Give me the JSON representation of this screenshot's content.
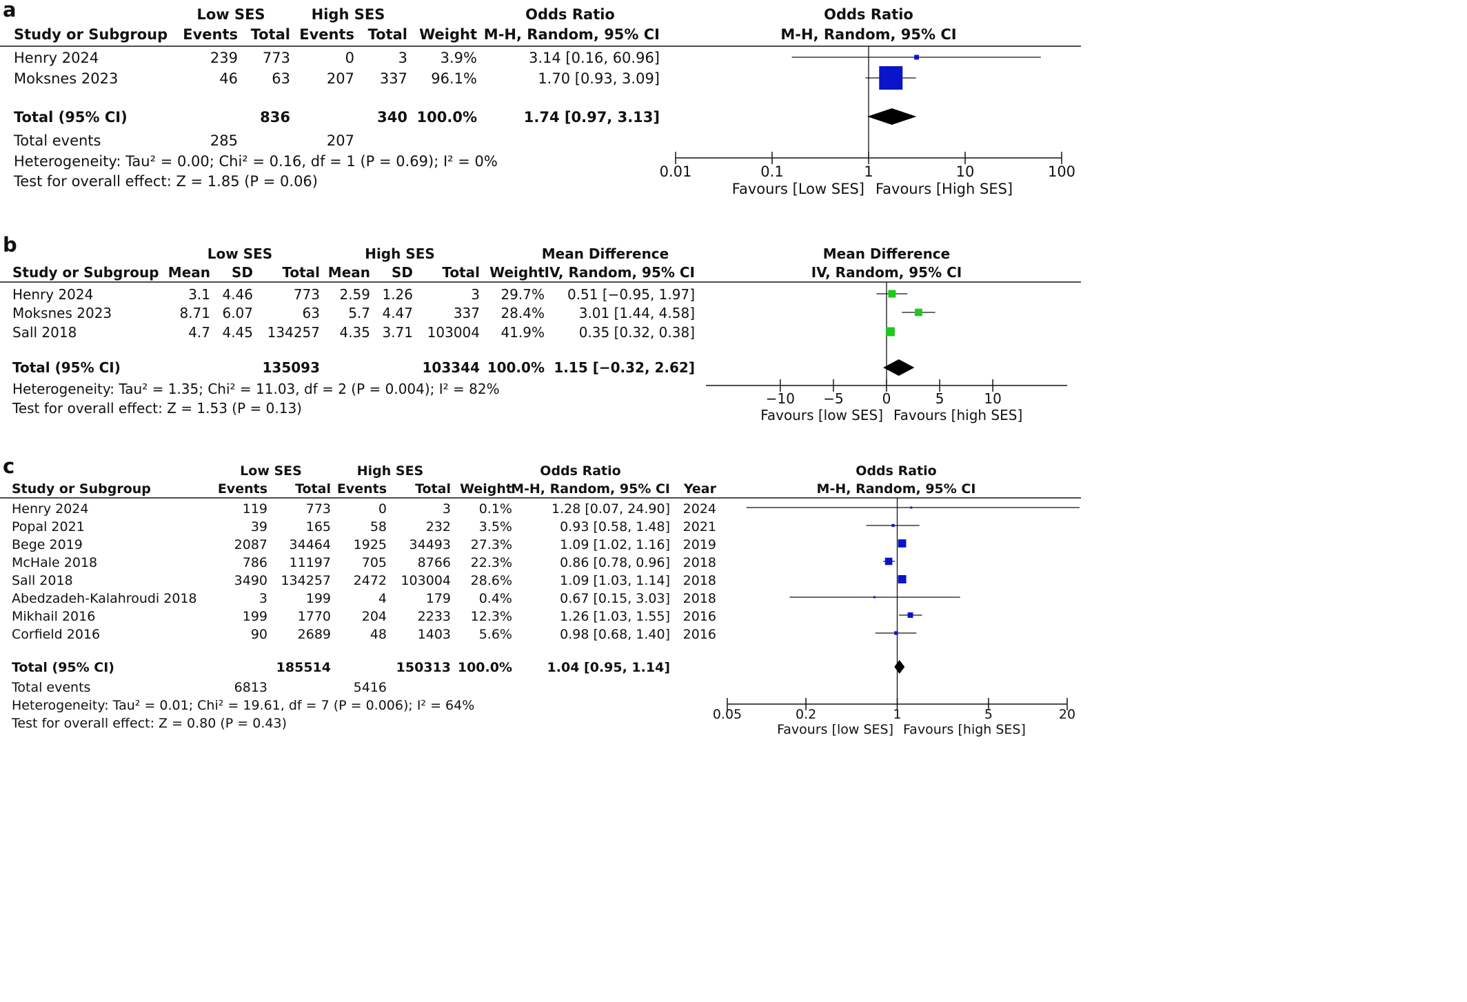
{
  "chart_data": [
    {
      "panel": "a",
      "type": "forest",
      "groups": [
        "Low SES",
        "High SES"
      ],
      "headers": {
        "study": "Study or Subgroup",
        "cols": [
          "Events",
          "Total",
          "Events",
          "Total",
          "Weight"
        ],
        "effect_table_top": "Odds Ratio",
        "effect_table_bottom": "M-H, Random, 95% CI",
        "plot_top": "Odds Ratio",
        "plot_bottom": "M-H, Random, 95% CI"
      },
      "studies": [
        {
          "name": "Henry 2024",
          "cells": [
            "239",
            "773",
            "0",
            "3",
            "3.9%"
          ],
          "ci_text": "3.14 [0.16, 60.96]",
          "est": 3.14,
          "lo": 0.16,
          "hi": 60.96,
          "weight": 3.9
        },
        {
          "name": "Moksnes 2023",
          "cells": [
            "46",
            "63",
            "207",
            "337",
            "96.1%"
          ],
          "ci_text": "1.70 [0.93, 3.09]",
          "est": 1.7,
          "lo": 0.93,
          "hi": 3.09,
          "weight": 96.1
        }
      ],
      "total": {
        "label": "Total (95% CI)",
        "cells": [
          "",
          "836",
          "",
          "340",
          "100.0%"
        ],
        "ci_text": "1.74 [0.97, 3.13]",
        "est": 1.74,
        "lo": 0.97,
        "hi": 3.13
      },
      "total_events": {
        "label": "Total events",
        "low": "285",
        "high": "207"
      },
      "heterogeneity": "Heterogeneity: Tau² = 0.00; Chi² = 0.16, df = 1 (P = 0.69); I² = 0%",
      "overall": "Test for overall effect: Z = 1.85 (P = 0.06)",
      "axis": {
        "scale": "log",
        "ticks": [
          0.01,
          0.1,
          1,
          10,
          100
        ],
        "tick_labels": [
          "0.01",
          "0.1",
          "1",
          "10",
          "100"
        ],
        "null": 1
      },
      "favours": [
        "Favours [Low SES]",
        "Favours [High SES]"
      ],
      "marker_color": "#0a14c8"
    },
    {
      "panel": "b",
      "type": "forest",
      "groups": [
        "Low SES",
        "High SES"
      ],
      "headers": {
        "study": "Study or Subgroup",
        "cols": [
          "Mean",
          "SD",
          "Total",
          "Mean",
          "SD",
          "Total",
          "Weight"
        ],
        "effect_table_top": "Mean Difference",
        "effect_table_bottom": "IV, Random, 95% CI",
        "plot_top": "Mean Difference",
        "plot_bottom": "IV, Random, 95% CI"
      },
      "studies": [
        {
          "name": "Henry 2024",
          "cells": [
            "3.1",
            "4.46",
            "773",
            "2.59",
            "1.26",
            "3",
            "29.7%"
          ],
          "ci_text": "0.51 [−0.95, 1.97]",
          "est": 0.51,
          "lo": -0.95,
          "hi": 1.97,
          "weight": 29.7
        },
        {
          "name": "Moksnes 2023",
          "cells": [
            "8.71",
            "6.07",
            "63",
            "5.7",
            "4.47",
            "337",
            "28.4%"
          ],
          "ci_text": "3.01 [1.44, 4.58]",
          "est": 3.01,
          "lo": 1.44,
          "hi": 4.58,
          "weight": 28.4
        },
        {
          "name": "Sall 2018",
          "cells": [
            "4.7",
            "4.45",
            "134257",
            "4.35",
            "3.71",
            "103004",
            "41.9%"
          ],
          "ci_text": "0.35 [0.32, 0.38]",
          "est": 0.35,
          "lo": 0.32,
          "hi": 0.38,
          "weight": 41.9
        }
      ],
      "total": {
        "label": "Total (95% CI)",
        "cells": [
          "",
          "",
          "135093",
          "",
          "",
          "103344",
          "100.0%"
        ],
        "ci_text": "1.15 [−0.32, 2.62]",
        "est": 1.15,
        "lo": -0.32,
        "hi": 2.62
      },
      "heterogeneity": "Heterogeneity: Tau² = 1.35; Chi² = 11.03, df = 2 (P = 0.004); I² = 82%",
      "overall": "Test for overall effect: Z = 1.53 (P = 0.13)",
      "axis": {
        "scale": "linear",
        "ticks": [
          -10,
          -5,
          0,
          5,
          10
        ],
        "tick_labels": [
          "−10",
          "−5",
          "0",
          "5",
          "10"
        ],
        "null": 0,
        "range": [
          -17,
          17
        ]
      },
      "favours": [
        "Favours [low SES]",
        "Favours [high SES]"
      ],
      "marker_color": "#1ec81e"
    },
    {
      "panel": "c",
      "type": "forest",
      "groups": [
        "Low SES",
        "High SES"
      ],
      "headers": {
        "study": "Study or Subgroup",
        "cols": [
          "Events",
          "Total",
          "Events",
          "Total",
          "Weight"
        ],
        "effect_table_top": "Odds Ratio",
        "effect_table_bottom": "M-H, Random, 95% CI",
        "year": "Year",
        "plot_top": "Odds Ratio",
        "plot_bottom": "M-H, Random, 95% CI"
      },
      "studies": [
        {
          "name": "Henry 2024",
          "cells": [
            "119",
            "773",
            "0",
            "3",
            "0.1%"
          ],
          "ci_text": "1.28 [0.07, 24.90]",
          "year": "2024",
          "est": 1.28,
          "lo": 0.07,
          "hi": 24.9,
          "weight": 0.1
        },
        {
          "name": "Popal 2021",
          "cells": [
            "39",
            "165",
            "58",
            "232",
            "3.5%"
          ],
          "ci_text": "0.93 [0.58, 1.48]",
          "year": "2021",
          "est": 0.93,
          "lo": 0.58,
          "hi": 1.48,
          "weight": 3.5
        },
        {
          "name": "Bege 2019",
          "cells": [
            "2087",
            "34464",
            "1925",
            "34493",
            "27.3%"
          ],
          "ci_text": "1.09 [1.02, 1.16]",
          "year": "2019",
          "est": 1.09,
          "lo": 1.02,
          "hi": 1.16,
          "weight": 27.3
        },
        {
          "name": "McHale 2018",
          "cells": [
            "786",
            "11197",
            "705",
            "8766",
            "22.3%"
          ],
          "ci_text": "0.86 [0.78, 0.96]",
          "year": "2018",
          "est": 0.86,
          "lo": 0.78,
          "hi": 0.96,
          "weight": 22.3
        },
        {
          "name": "Sall 2018",
          "cells": [
            "3490",
            "134257",
            "2472",
            "103004",
            "28.6%"
          ],
          "ci_text": "1.09 [1.03, 1.14]",
          "year": "2018",
          "est": 1.09,
          "lo": 1.03,
          "hi": 1.14,
          "weight": 28.6
        },
        {
          "name": "Abedzadeh-Kalahroudi 2018",
          "cells": [
            "3",
            "199",
            "4",
            "179",
            "0.4%"
          ],
          "ci_text": "0.67 [0.15, 3.03]",
          "year": "2018",
          "est": 0.67,
          "lo": 0.15,
          "hi": 3.03,
          "weight": 0.4
        },
        {
          "name": "Mikhail 2016",
          "cells": [
            "199",
            "1770",
            "204",
            "2233",
            "12.3%"
          ],
          "ci_text": "1.26 [1.03, 1.55]",
          "year": "2016",
          "est": 1.26,
          "lo": 1.03,
          "hi": 1.55,
          "weight": 12.3
        },
        {
          "name": "Corfield 2016",
          "cells": [
            "90",
            "2689",
            "48",
            "1403",
            "5.6%"
          ],
          "ci_text": "0.98 [0.68, 1.40]",
          "year": "2016",
          "est": 0.98,
          "lo": 0.68,
          "hi": 1.4,
          "weight": 5.6
        }
      ],
      "total": {
        "label": "Total (95% CI)",
        "cells": [
          "",
          "185514",
          "",
          "150313",
          "100.0%"
        ],
        "ci_text": "1.04 [0.95, 1.14]",
        "est": 1.04,
        "lo": 0.95,
        "hi": 1.14
      },
      "total_events": {
        "label": "Total events",
        "low": "6813",
        "high": "5416"
      },
      "heterogeneity": "Heterogeneity: Tau² = 0.01; Chi² = 19.61, df = 7 (P = 0.006); I² = 64%",
      "overall": "Test for overall effect: Z = 0.80 (P = 0.43)",
      "axis": {
        "scale": "log",
        "ticks": [
          0.05,
          0.2,
          1,
          5,
          20
        ],
        "tick_labels": [
          "0.05",
          "0.2",
          "1",
          "5",
          "20"
        ],
        "null": 1
      },
      "favours": [
        "Favours [low SES]",
        "Favours [high SES]"
      ],
      "marker_color": "#0a14c8"
    }
  ]
}
